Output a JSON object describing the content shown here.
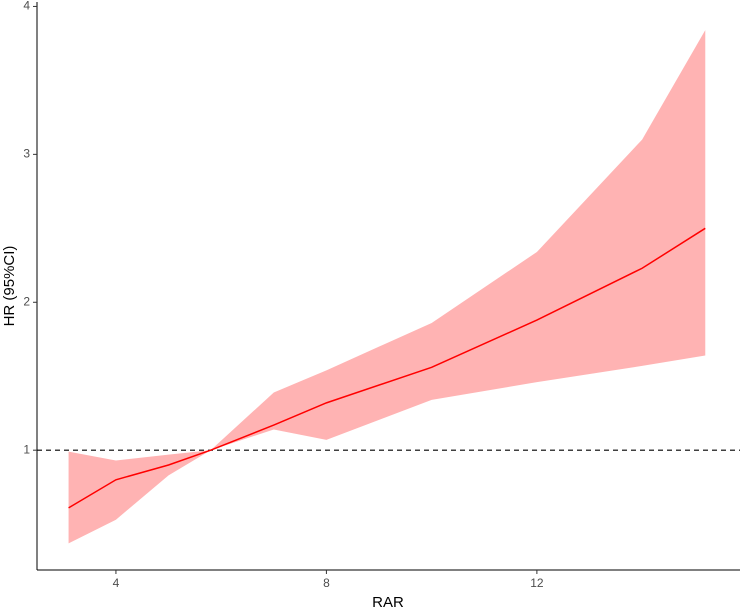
{
  "chart_data": {
    "type": "line",
    "xlabel": "RAR",
    "ylabel": "HR (95%CI)",
    "x": [
      3.1,
      4,
      5,
      5.8,
      7,
      8,
      10,
      12,
      14,
      15.2
    ],
    "series": [
      {
        "color": "#ff0000",
        "values": [
          0.61,
          0.8,
          0.9,
          1.0,
          1.17,
          1.32,
          1.56,
          1.88,
          2.23,
          2.5
        ]
      }
    ],
    "band": {
      "color": "#ffb3b3",
      "lower": [
        0.37,
        0.53,
        0.83,
        1.0,
        1.14,
        1.07,
        1.34,
        1.46,
        1.57,
        1.64
      ],
      "upper": [
        0.99,
        0.93,
        0.97,
        1.0,
        1.39,
        1.54,
        1.86,
        2.34,
        3.1,
        3.84
      ]
    },
    "hline": 1,
    "xlim": [
      2.5,
      15.86
    ],
    "ylim": [
      0.19,
      4.03
    ],
    "xticks": [
      4,
      8,
      12
    ],
    "yticks": [
      1,
      2,
      3,
      4
    ]
  }
}
